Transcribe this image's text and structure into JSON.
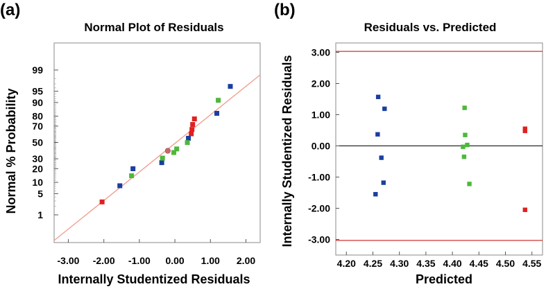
{
  "panels": {
    "a": {
      "label": "(a)"
    },
    "b": {
      "label": "(b)"
    }
  },
  "chart_data": [
    {
      "type": "scatter",
      "title": "Normal Plot of Residuals",
      "xlabel": "Internally Studentized Residuals",
      "ylabel": "Normal % Probability",
      "xlim": [
        -3.4,
        2.4
      ],
      "y_scale": "normal-probability",
      "x_ticks": [
        "-3.00",
        "-2.00",
        "-1.00",
        "0.00",
        "1.00",
        "2.00"
      ],
      "y_ticks": [
        "1",
        "5",
        "10",
        "20",
        "30",
        "50",
        "70",
        "80",
        "90",
        "95",
        "99"
      ],
      "reference_line": {
        "color": "#f0a090"
      },
      "series": [
        {
          "color": "#e02020",
          "points": [
            {
              "x": -2.05,
              "y": 2.8
            },
            {
              "x": 0.46,
              "y": 60.9
            },
            {
              "x": 0.48,
              "y": 66.2
            },
            {
              "x": 0.5,
              "y": 71.8
            },
            {
              "x": 0.55,
              "y": 77.5
            }
          ]
        },
        {
          "color": "#1a3fa0",
          "points": [
            {
              "x": -1.55,
              "y": 8.2
            },
            {
              "x": -1.18,
              "y": 19.9
            },
            {
              "x": -0.37,
              "y": 25.8
            },
            {
              "x": 0.38,
              "y": 55.3
            },
            {
              "x": 1.18,
              "y": 82.5
            },
            {
              "x": 1.56,
              "y": 96.4
            }
          ]
        },
        {
          "color": "#4db83a",
          "points": [
            {
              "x": -1.22,
              "y": 14.2
            },
            {
              "x": -0.35,
              "y": 30.7
            },
            {
              "x": -0.03,
              "y": 37.3
            },
            {
              "x": 0.05,
              "y": 41.7
            },
            {
              "x": 0.35,
              "y": 49.8
            },
            {
              "x": 1.22,
              "y": 91.2
            }
          ]
        },
        {
          "color": "#c46a6a",
          "points": [
            {
              "x": -0.2,
              "y": 39.4
            }
          ]
        }
      ]
    },
    {
      "type": "scatter",
      "title": "Residuals vs. Predicted",
      "xlabel": "Predicted",
      "ylabel": "Internally Studentized Residuals",
      "xlim": [
        4.18,
        4.57
      ],
      "ylim": [
        -3.5,
        3.3
      ],
      "x_ticks": [
        "4.20",
        "4.25",
        "4.30",
        "4.35",
        "4.40",
        "4.45",
        "4.50",
        "4.55"
      ],
      "y_ticks": [
        "3.00",
        "2.00",
        "1.00",
        "0.00",
        "-1.00",
        "-2.00",
        "-3.00"
      ],
      "limit_lines": {
        "values": [
          3.03,
          -3.03
        ],
        "color": "#d03030"
      },
      "zero_line": {
        "value": 0,
        "color": "#000000"
      },
      "series": [
        {
          "color": "#1a3fa0",
          "points": [
            {
              "x": 4.26,
              "y": 1.57
            },
            {
              "x": 4.272,
              "y": 1.19
            },
            {
              "x": 4.259,
              "y": 0.37
            },
            {
              "x": 4.266,
              "y": -0.38
            },
            {
              "x": 4.27,
              "y": -1.18
            },
            {
              "x": 4.255,
              "y": -1.55
            }
          ]
        },
        {
          "color": "#4db83a",
          "points": [
            {
              "x": 4.423,
              "y": 1.22
            },
            {
              "x": 4.424,
              "y": 0.35
            },
            {
              "x": 4.428,
              "y": 0.03
            },
            {
              "x": 4.42,
              "y": -0.03
            },
            {
              "x": 4.422,
              "y": -0.35
            },
            {
              "x": 4.432,
              "y": -1.22
            }
          ]
        },
        {
          "color": "#e02020",
          "points": [
            {
              "x": 4.537,
              "y": 0.55
            },
            {
              "x": 4.537,
              "y": 0.48
            },
            {
              "x": 4.537,
              "y": -2.05
            }
          ]
        }
      ]
    }
  ]
}
